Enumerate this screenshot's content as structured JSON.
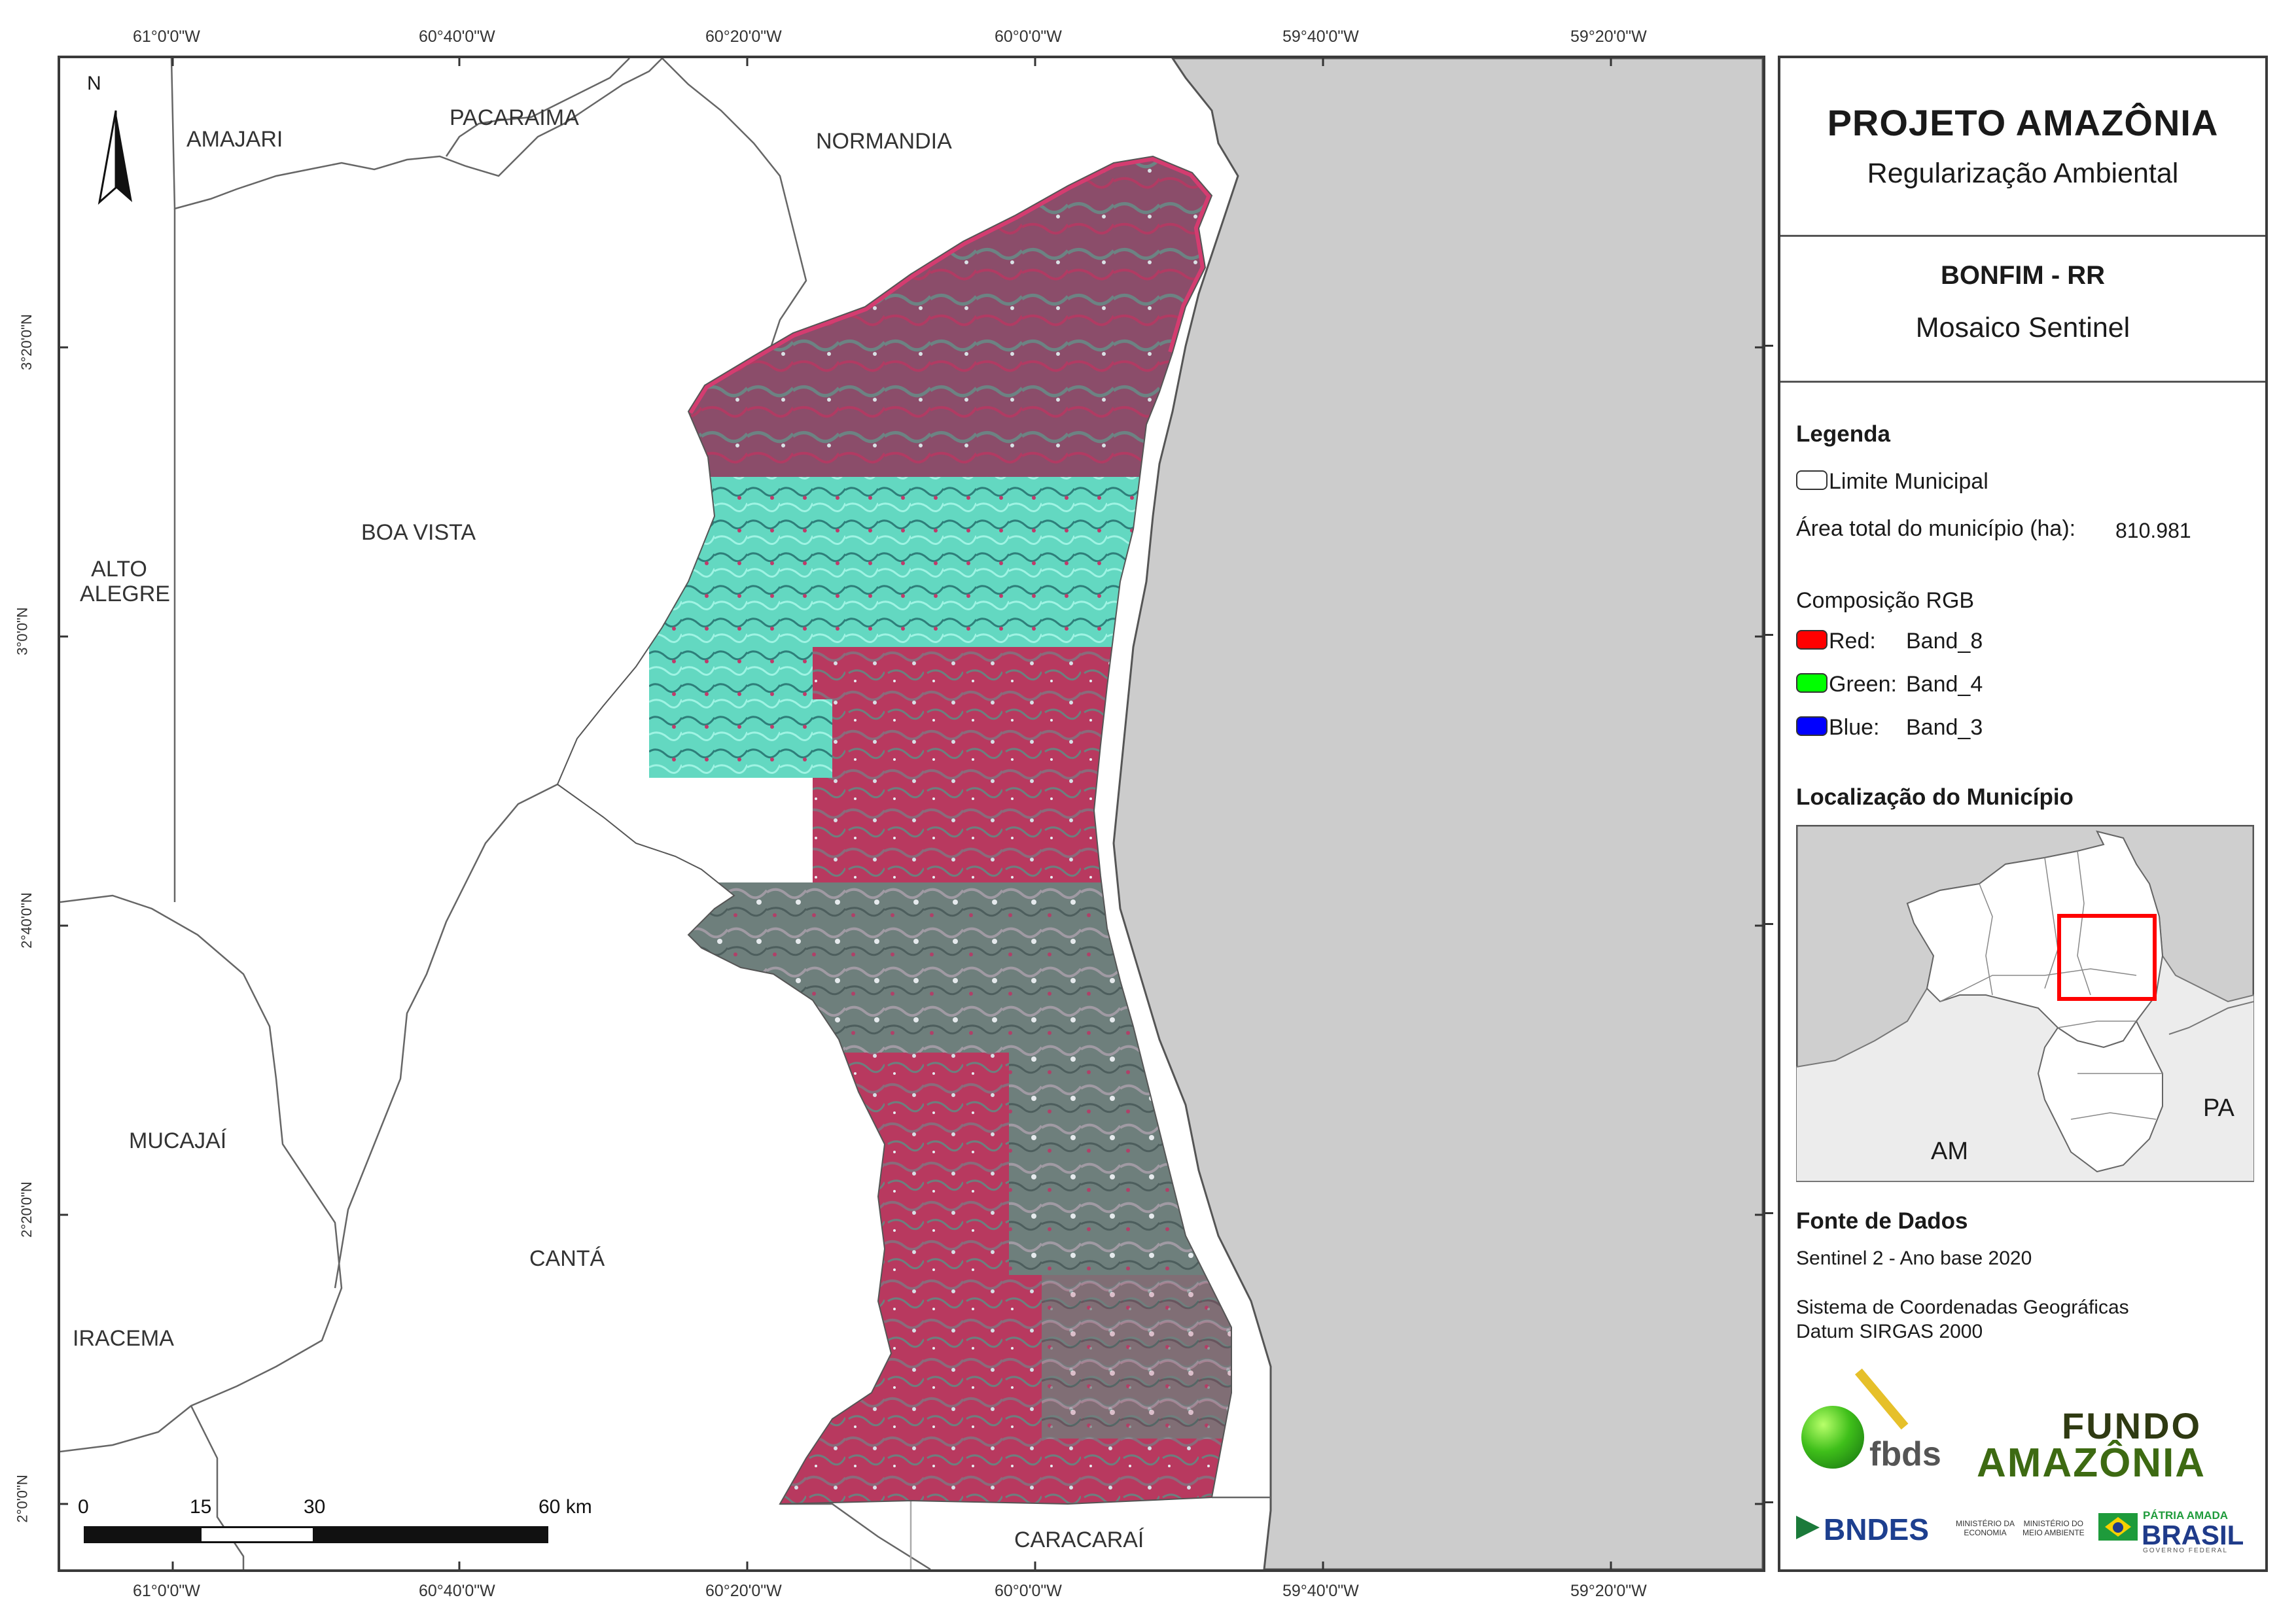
{
  "coords": {
    "lon_labels": [
      "61°0'0\"W",
      "60°40'0\"W",
      "60°20'0\"W",
      "60°0'0\"W",
      "59°40'0\"W",
      "59°20'0\"W"
    ],
    "lat_labels": [
      "3°20'0\"N",
      "3°0'0\"N",
      "2°40'0\"N",
      "2°20'0\"N",
      "2°0'0\"N"
    ]
  },
  "map": {
    "north_letter": "N",
    "municipalities": {
      "amajari": "AMAJARI",
      "pacaraima": "PACARAIMA",
      "normandia": "NORMANDIA",
      "boa_vista": "BOA VISTA",
      "alto_alegre_1": "ALTO",
      "alto_alegre_2": "ALEGRE",
      "mucajai": "MUCAJAÍ",
      "canta": "CANTÁ",
      "iracema": "IRACEMA",
      "caracarai": "CARACARAÍ"
    },
    "scale_bar": {
      "labels": [
        "0",
        "15",
        "30",
        "60 km"
      ],
      "values_km": [
        0,
        15,
        30,
        60
      ]
    }
  },
  "panel": {
    "title": "PROJETO AMAZÔNIA",
    "subtitle": "Regularização Ambiental",
    "municipality": "BONFIM - RR",
    "product": "Mosaico Sentinel",
    "legend": {
      "heading": "Legenda",
      "limit_label": "Limite Municipal",
      "area_label": "Área total do município (ha):",
      "area_value": "810.981",
      "rgb_heading": "Composição RGB",
      "red_label": "Red:",
      "red_band": "Band_8",
      "green_label": "Green:",
      "green_band": "Band_4",
      "blue_label": "Blue:",
      "blue_band": "Band_3",
      "colors": {
        "red": "#ff0000",
        "green": "#00ff00",
        "blue": "#0000ff"
      }
    },
    "location": {
      "heading": "Localização do Município",
      "am_label": "AM",
      "pa_label": "PA"
    },
    "sources": {
      "heading": "Fonte de Dados",
      "line1": "Sentinel 2 - Ano base 2020",
      "line2": "Sistema de Coordenadas Geográficas",
      "line3": "Datum SIRGAS 2000"
    },
    "logos": {
      "fbds": "fbds",
      "fundo_1": "FUNDO",
      "fundo_2": "AMAZÔNIA",
      "bndes": "BNDES",
      "min_eco_1": "MINISTÉRIO DA",
      "min_eco_2": "ECONOMIA",
      "min_ma_1": "MINISTÉRIO DO",
      "min_ma_2": "MEIO AMBIENTE",
      "patria_1": "PÁTRIA AMADA",
      "patria_2": "BRASIL",
      "patria_3": "GOVERNO FEDERAL"
    }
  }
}
